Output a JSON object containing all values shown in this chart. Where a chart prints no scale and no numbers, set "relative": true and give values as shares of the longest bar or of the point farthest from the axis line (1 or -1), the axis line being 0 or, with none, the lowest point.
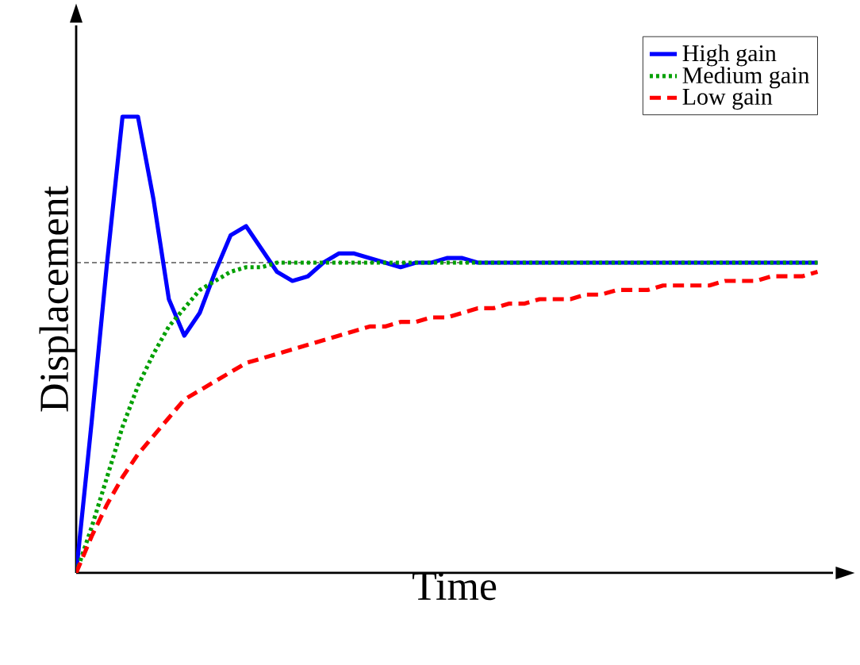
{
  "chart_data": {
    "type": "line",
    "relative": true,
    "xlabel": "Time",
    "ylabel": "Displacement",
    "legend": "top right",
    "marker": "none",
    "categories": [
      null,
      null,
      null,
      null,
      null,
      null,
      null,
      null,
      null,
      null,
      null,
      null,
      null,
      null,
      null,
      null,
      null,
      null,
      null,
      null,
      null,
      null,
      null,
      null,
      null,
      null,
      null,
      null,
      null,
      null,
      null,
      null,
      null,
      null,
      null,
      null,
      null,
      null,
      null,
      null,
      null,
      null,
      null,
      null,
      null,
      null,
      null,
      null,
      null
    ],
    "ref_lines": [
      {
        "axis": "y",
        "value": 0.68,
        "color": "#000000",
        "line_style": "dashed"
      }
    ],
    "series": [
      {
        "name": "High gain",
        "color": "#0000ff",
        "line_style": "solid",
        "values": [
          0,
          0.33,
          0.68,
          1,
          1,
          0.82,
          0.6,
          0.52,
          0.57,
          0.66,
          0.74,
          0.76,
          0.71,
          0.66,
          0.64,
          0.65,
          0.68,
          0.7,
          0.7,
          0.69,
          0.68,
          0.67,
          0.68,
          0.68,
          0.69,
          0.69,
          0.68,
          0.68,
          0.68,
          0.68,
          0.68,
          0.68,
          0.68,
          0.68,
          0.68,
          0.68,
          0.68,
          0.68,
          0.68,
          0.68,
          0.68,
          0.68,
          0.68,
          0.68,
          0.68,
          0.68,
          0.68,
          0.68,
          0.68
        ]
      },
      {
        "name": "Medium gain",
        "color": "#00a000",
        "line_style": "dotted",
        "values": [
          0,
          0.1,
          0.21,
          0.32,
          0.41,
          0.48,
          0.54,
          0.58,
          0.62,
          0.64,
          0.66,
          0.67,
          0.67,
          0.68,
          0.68,
          0.68,
          0.68,
          0.68,
          0.68,
          0.68,
          0.68,
          0.68,
          0.68,
          0.68,
          0.68,
          0.68,
          0.68,
          0.68,
          0.68,
          0.68,
          0.68,
          0.68,
          0.68,
          0.68,
          0.68,
          0.68,
          0.68,
          0.68,
          0.68,
          0.68,
          0.68,
          0.68,
          0.68,
          0.68,
          0.68,
          0.68,
          0.68,
          0.68,
          0.68
        ]
      },
      {
        "name": "Low gain",
        "color": "#ff0000",
        "line_style": "dashed",
        "values": [
          0,
          0.08,
          0.15,
          0.21,
          0.26,
          0.3,
          0.34,
          0.38,
          0.4,
          0.42,
          0.44,
          0.46,
          0.47,
          0.48,
          0.49,
          0.5,
          0.51,
          0.52,
          0.53,
          0.54,
          0.54,
          0.55,
          0.55,
          0.56,
          0.56,
          0.57,
          0.58,
          0.58,
          0.59,
          0.59,
          0.6,
          0.6,
          0.6,
          0.61,
          0.61,
          0.62,
          0.62,
          0.62,
          0.63,
          0.63,
          0.63,
          0.63,
          0.64,
          0.64,
          0.64,
          0.65,
          0.65,
          0.65,
          0.66
        ]
      }
    ]
  }
}
